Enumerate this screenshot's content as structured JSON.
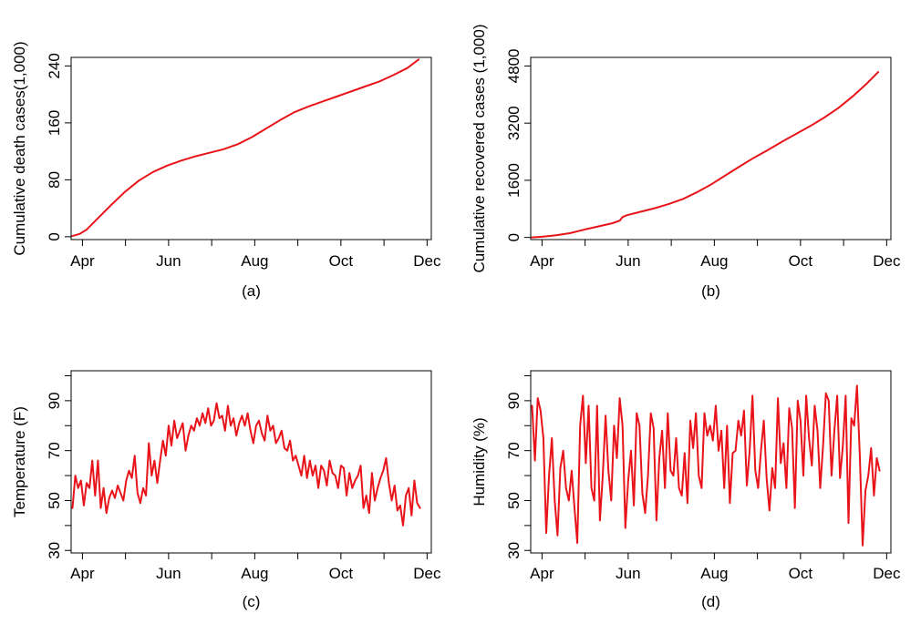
{
  "colors": {
    "series": "#e8141a",
    "axis": "#000000",
    "background": "#ffffff"
  },
  "chart_data": [
    {
      "type": "line",
      "caption": "(a)",
      "title": "",
      "xlabel": "",
      "ylabel": "Cumulative death cases(1,000)",
      "x_ticks": [
        {
          "day": 0,
          "label": "Apr"
        },
        {
          "day": 61,
          "label": "Jun"
        },
        {
          "day": 122,
          "label": "Aug"
        },
        {
          "day": 183,
          "label": "Oct"
        },
        {
          "day": 244,
          "label": "Dec"
        }
      ],
      "x_minor_ticks": [
        30.5,
        91.5,
        152.5,
        213.5
      ],
      "xlim": [
        -8,
        247
      ],
      "ylim": [
        -4,
        252
      ],
      "y_ticks": [
        0,
        80,
        160,
        240
      ],
      "grid": false,
      "legend": "none",
      "series": [
        {
          "name": "Cumulative death cases",
          "color": "#e8141a",
          "x": [
            -7,
            -2,
            3,
            10,
            20,
            30,
            40,
            50,
            60,
            70,
            80,
            90,
            100,
            110,
            120,
            130,
            140,
            150,
            160,
            170,
            180,
            190,
            200,
            210,
            220,
            230,
            238
          ],
          "y": [
            1,
            4,
            10,
            24,
            44,
            63,
            79,
            91,
            100,
            107,
            113,
            118,
            123,
            130,
            140,
            152,
            164,
            175,
            183,
            190,
            197,
            204,
            211,
            218,
            227,
            237,
            249
          ]
        }
      ]
    },
    {
      "type": "line",
      "caption": "(b)",
      "title": "",
      "xlabel": "",
      "ylabel": "Cumulative recovered cases (1,000)",
      "x_ticks": [
        {
          "day": 0,
          "label": "Apr"
        },
        {
          "day": 61,
          "label": "Jun"
        },
        {
          "day": 122,
          "label": "Aug"
        },
        {
          "day": 183,
          "label": "Oct"
        },
        {
          "day": 244,
          "label": "Dec"
        }
      ],
      "x_minor_ticks": [
        30.5,
        91.5,
        152.5,
        213.5
      ],
      "xlim": [
        -8,
        247
      ],
      "ylim": [
        -60,
        5040
      ],
      "y_ticks": [
        0,
        1600,
        3200,
        4800
      ],
      "grid": false,
      "legend": "none",
      "series": [
        {
          "name": "Cumulative recovered cases",
          "color": "#e8141a",
          "x": [
            -7,
            0,
            10,
            20,
            30,
            40,
            50,
            55,
            57,
            60,
            70,
            80,
            90,
            100,
            110,
            120,
            130,
            140,
            150,
            160,
            170,
            180,
            190,
            200,
            210,
            220,
            230,
            238
          ],
          "y": [
            0,
            20,
            60,
            120,
            220,
            310,
            400,
            470,
            570,
            620,
            720,
            820,
            940,
            1080,
            1270,
            1490,
            1740,
            1990,
            2230,
            2450,
            2680,
            2900,
            3120,
            3360,
            3630,
            3950,
            4310,
            4630
          ]
        }
      ]
    },
    {
      "type": "line",
      "caption": "(c)",
      "title": "",
      "xlabel": "",
      "ylabel": "Temperature (F)",
      "x_ticks": [
        {
          "day": 0,
          "label": "Apr"
        },
        {
          "day": 61,
          "label": "Jun"
        },
        {
          "day": 122,
          "label": "Aug"
        },
        {
          "day": 183,
          "label": "Oct"
        },
        {
          "day": 244,
          "label": "Dec"
        }
      ],
      "x_minor_ticks": [
        30.5,
        91.5,
        152.5,
        213.5
      ],
      "xlim": [
        -8,
        247
      ],
      "ylim": [
        29,
        102
      ],
      "y_ticks": [
        30,
        50,
        70,
        90
      ],
      "y_minor_ticks": [
        40,
        60,
        80,
        100
      ],
      "grid": false,
      "legend": "none",
      "series": [
        {
          "name": "Temperature",
          "color": "#e8141a",
          "x": [
            -7,
            -5,
            -3,
            -1,
            1,
            3,
            5,
            7,
            9,
            11,
            13,
            15,
            17,
            19,
            21,
            23,
            25,
            27,
            29,
            31,
            33,
            35,
            37,
            39,
            41,
            43,
            45,
            47,
            49,
            51,
            53,
            55,
            57,
            59,
            61,
            63,
            65,
            67,
            69,
            71,
            73,
            75,
            77,
            79,
            81,
            83,
            85,
            87,
            89,
            91,
            93,
            95,
            97,
            99,
            101,
            103,
            105,
            107,
            109,
            111,
            113,
            115,
            117,
            119,
            121,
            123,
            125,
            127,
            129,
            131,
            133,
            135,
            137,
            139,
            141,
            143,
            145,
            147,
            149,
            151,
            153,
            155,
            157,
            159,
            161,
            163,
            165,
            167,
            169,
            171,
            173,
            175,
            177,
            179,
            181,
            183,
            185,
            187,
            189,
            191,
            193,
            195,
            197,
            199,
            201,
            203,
            205,
            207,
            209,
            211,
            213,
            215,
            217,
            219,
            221,
            223,
            225,
            227,
            229,
            231,
            233,
            235,
            237,
            239
          ],
          "y": [
            47,
            60,
            55,
            58,
            48,
            57,
            55,
            66,
            52,
            66,
            47,
            55,
            45,
            51,
            54,
            51,
            56,
            53,
            50,
            58,
            62,
            59,
            68,
            53,
            49,
            55,
            52,
            73,
            60,
            66,
            57,
            66,
            74,
            68,
            80,
            72,
            82,
            75,
            78,
            81,
            70,
            76,
            80,
            78,
            83,
            80,
            85,
            81,
            87,
            80,
            82,
            89,
            83,
            84,
            78,
            88,
            80,
            83,
            76,
            81,
            84,
            80,
            85,
            78,
            73,
            80,
            82,
            77,
            74,
            84,
            78,
            80,
            73,
            75,
            78,
            71,
            70,
            74,
            66,
            68,
            64,
            60,
            68,
            59,
            66,
            60,
            64,
            55,
            64,
            62,
            56,
            66,
            61,
            60,
            55,
            64,
            63,
            52,
            61,
            55,
            58,
            60,
            64,
            47,
            52,
            45,
            61,
            50,
            55,
            59,
            62,
            67,
            57,
            50,
            56,
            46,
            48,
            40,
            52,
            55,
            44,
            58,
            49,
            47
          ]
        }
      ]
    },
    {
      "type": "line",
      "caption": "(d)",
      "title": "",
      "xlabel": "",
      "ylabel": "Humidity (%)",
      "x_ticks": [
        {
          "day": 0,
          "label": "Apr"
        },
        {
          "day": 61,
          "label": "Jun"
        },
        {
          "day": 122,
          "label": "Aug"
        },
        {
          "day": 183,
          "label": "Oct"
        },
        {
          "day": 244,
          "label": "Dec"
        }
      ],
      "x_minor_ticks": [
        30.5,
        91.5,
        152.5,
        213.5
      ],
      "xlim": [
        -8,
        247
      ],
      "ylim": [
        29,
        102
      ],
      "y_ticks": [
        30,
        50,
        70,
        90
      ],
      "y_minor_ticks": [
        40,
        60,
        80,
        100
      ],
      "grid": false,
      "legend": "none",
      "series": [
        {
          "name": "Humidity",
          "color": "#e8141a",
          "x": [
            -7,
            -5,
            -3,
            -1,
            1,
            3,
            5,
            7,
            9,
            11,
            13,
            15,
            17,
            19,
            21,
            23,
            25,
            27,
            29,
            31,
            33,
            35,
            37,
            39,
            41,
            43,
            45,
            47,
            49,
            51,
            53,
            55,
            57,
            59,
            61,
            63,
            65,
            67,
            69,
            71,
            73,
            75,
            77,
            79,
            81,
            83,
            85,
            87,
            89,
            91,
            93,
            95,
            97,
            99,
            101,
            103,
            105,
            107,
            109,
            111,
            113,
            115,
            117,
            119,
            121,
            123,
            125,
            127,
            129,
            131,
            133,
            135,
            137,
            139,
            141,
            143,
            145,
            147,
            149,
            151,
            153,
            155,
            157,
            159,
            161,
            163,
            165,
            167,
            169,
            171,
            173,
            175,
            177,
            179,
            181,
            183,
            185,
            187,
            189,
            191,
            193,
            195,
            197,
            199,
            201,
            203,
            205,
            207,
            209,
            211,
            213,
            215,
            217,
            219,
            221,
            223,
            225,
            227,
            229,
            231,
            233,
            235,
            237,
            239
          ],
          "y": [
            88,
            66,
            91,
            86,
            75,
            37,
            60,
            75,
            50,
            36,
            63,
            70,
            55,
            50,
            62,
            47,
            33,
            80,
            92,
            65,
            88,
            55,
            50,
            88,
            42,
            60,
            84,
            62,
            50,
            80,
            67,
            91,
            80,
            39,
            58,
            70,
            48,
            85,
            80,
            53,
            45,
            60,
            85,
            79,
            42,
            67,
            78,
            55,
            85,
            62,
            60,
            75,
            55,
            52,
            69,
            49,
            82,
            71,
            85,
            60,
            55,
            85,
            76,
            80,
            74,
            88,
            70,
            78,
            55,
            80,
            49,
            69,
            70,
            82,
            76,
            86,
            56,
            70,
            92,
            62,
            55,
            70,
            82,
            59,
            46,
            63,
            55,
            91,
            65,
            73,
            55,
            87,
            79,
            47,
            90,
            82,
            60,
            92,
            75,
            64,
            88,
            78,
            55,
            72,
            93,
            90,
            60,
            78,
            92,
            59,
            72,
            92,
            41,
            83,
            80,
            96,
            68,
            32,
            54,
            60,
            71,
            52,
            67,
            62
          ]
        }
      ]
    }
  ]
}
